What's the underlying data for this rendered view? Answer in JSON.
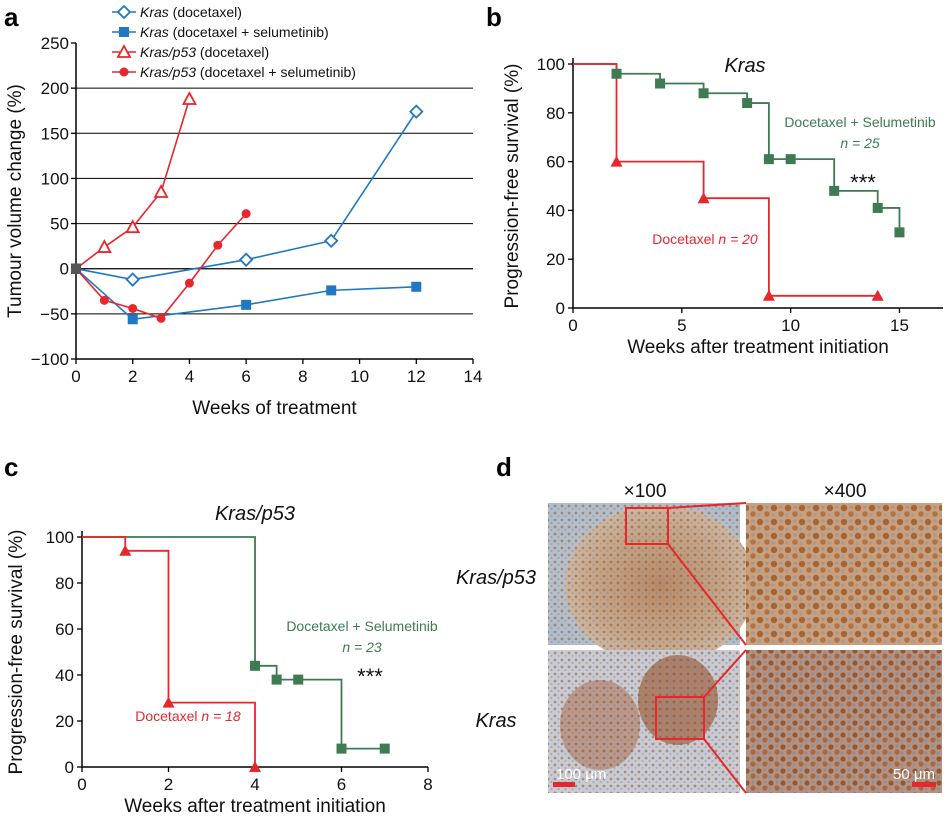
{
  "panel_labels": [
    "a",
    "b",
    "c",
    "d"
  ],
  "colors": {
    "blue": "#1f78c1",
    "red": "#e8262d",
    "green": "#3e7a52",
    "black": "#000000",
    "grid": "#000000"
  },
  "chart_data": [
    {
      "id": "a",
      "type": "line",
      "xlabel": "Weeks of treatment",
      "ylabel": "Tumour volume change (%)",
      "xlim": [
        0,
        14
      ],
      "ylim": [
        -100,
        250
      ],
      "xticks": [
        0,
        2,
        4,
        6,
        8,
        10,
        12,
        14
      ],
      "yticks": [
        -100,
        -50,
        0,
        50,
        100,
        150,
        200,
        250
      ],
      "ytick_labels": [
        "−100",
        "−50",
        "0",
        "50",
        "100",
        "150",
        "200",
        "250"
      ],
      "grid": "horizontal",
      "legend_position": "top",
      "legend": [
        {
          "gene": "Kras",
          "rest": " (docetaxel)"
        },
        {
          "gene": "Kras",
          "rest": " (docetaxel + selumetinib)"
        },
        {
          "gene": "Kras/p53",
          "rest": " (docetaxel)"
        },
        {
          "gene": "Kras/p53",
          "rest": " (docetaxel + selumetinib)"
        }
      ],
      "series": [
        {
          "color": "#1f78c1",
          "marker": "diamond-open",
          "x": [
            0,
            2,
            6,
            9,
            12
          ],
          "y": [
            0,
            -12,
            10,
            31,
            174
          ]
        },
        {
          "color": "#1f78c1",
          "marker": "square-filled",
          "x": [
            0,
            2,
            6,
            9,
            12
          ],
          "y": [
            0,
            -56,
            -40,
            -24,
            -20
          ]
        },
        {
          "color": "#e8262d",
          "marker": "triangle-open",
          "x": [
            0,
            1,
            2,
            3,
            4
          ],
          "y": [
            0,
            24,
            46,
            85,
            188
          ]
        },
        {
          "color": "#e8262d",
          "marker": "circle-filled",
          "x": [
            0,
            1,
            2,
            3,
            4,
            5,
            6
          ],
          "y": [
            0,
            -35,
            -44,
            -55,
            -16,
            26,
            61
          ]
        }
      ]
    },
    {
      "id": "b",
      "type": "line",
      "title": "Kras",
      "xlabel": "Weeks after treatment initiation",
      "ylabel": "Progression-free survival (%)",
      "xlim": [
        0,
        17
      ],
      "ylim": [
        0,
        100
      ],
      "xticks": [
        0,
        5,
        10,
        15
      ],
      "yticks": [
        0,
        20,
        40,
        60,
        80,
        100
      ],
      "significance": "***",
      "series": [
        {
          "color": "#3e7a52",
          "marker": "square-filled",
          "label": "Docetaxel + Selumetinib",
          "n_label": "n = 25",
          "x": [
            0,
            2,
            4,
            6,
            8,
            9,
            10,
            12,
            14,
            15
          ],
          "y": [
            100,
            96,
            92,
            88,
            84,
            61,
            61,
            48,
            41,
            31
          ]
        },
        {
          "color": "#e8262d",
          "marker": "triangle-filled",
          "label": "Docetaxel",
          "n_label": "n = 20",
          "x": [
            0,
            2,
            6,
            9,
            14
          ],
          "y": [
            100,
            60,
            45,
            5,
            5
          ]
        }
      ]
    },
    {
      "id": "c",
      "type": "line",
      "title": "Kras/p53",
      "xlabel": "Weeks after treatment initiation",
      "ylabel": "Progression-free survival (%)",
      "xlim": [
        0,
        8
      ],
      "ylim": [
        0,
        100
      ],
      "xticks": [
        0,
        2,
        4,
        6,
        8
      ],
      "yticks": [
        0,
        20,
        40,
        60,
        80,
        100
      ],
      "significance": "***",
      "series": [
        {
          "color": "#3e7a52",
          "marker": "square-filled",
          "label": "Docetaxel + Selumetinib",
          "n_label": "n = 23",
          "x": [
            0,
            4,
            4.5,
            5,
            6,
            7
          ],
          "y": [
            100,
            44,
            38,
            38,
            8,
            8
          ]
        },
        {
          "color": "#e8262d",
          "marker": "triangle-filled",
          "label": "Docetaxel",
          "n_label": "n = 18",
          "x": [
            0,
            1,
            2,
            4
          ],
          "y": [
            100,
            94,
            28,
            0
          ]
        }
      ]
    }
  ],
  "micrographs": {
    "col_labels": [
      "×100",
      "×400"
    ],
    "row_labels": [
      "Kras/p53",
      "Kras"
    ],
    "scale_bars": [
      "100 μm",
      "50 μm"
    ]
  }
}
